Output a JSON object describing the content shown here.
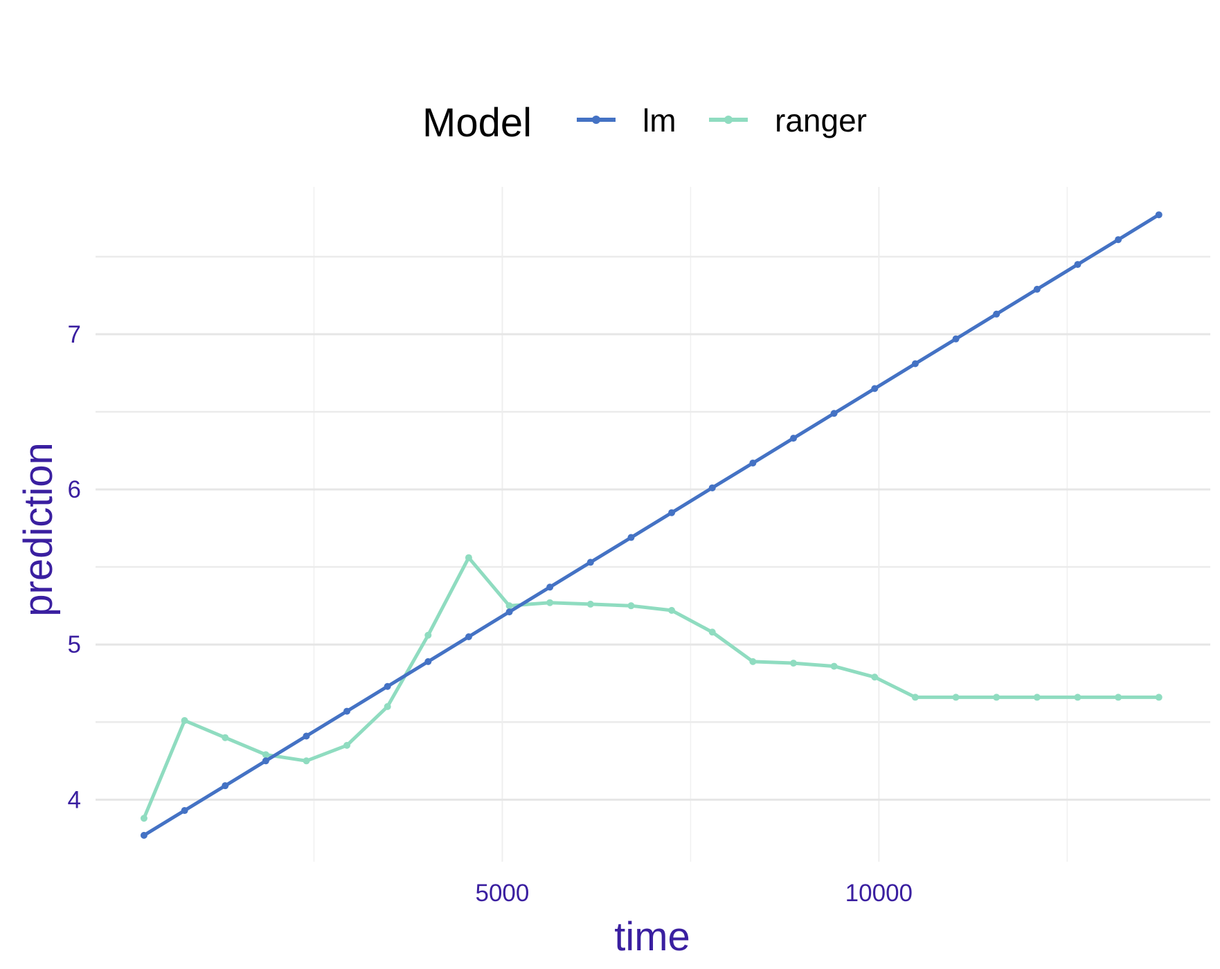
{
  "chart_data": {
    "type": "line",
    "xlabel": "time",
    "ylabel": "prediction",
    "xlim": [
      -400,
      14400
    ],
    "ylim": [
      3.6,
      7.95
    ],
    "x_ticks": [
      5000,
      10000
    ],
    "x_minor_ticks": [
      2500,
      7500,
      12500
    ],
    "y_ticks": [
      4,
      5,
      6,
      7
    ],
    "y_minor_ticks": [
      4.5,
      5.5,
      6.5,
      7.5
    ],
    "grid": true,
    "legend": {
      "title": "Model",
      "position": "top",
      "entries": [
        "lm",
        "ranger"
      ]
    },
    "series": [
      {
        "name": "lm",
        "color": "#4472c4",
        "points": [
          [
            243,
            3.77
          ],
          [
            782,
            3.93
          ],
          [
            1321,
            4.09
          ],
          [
            1860,
            4.25
          ],
          [
            2399,
            4.41
          ],
          [
            2937,
            4.57
          ],
          [
            3476,
            4.73
          ],
          [
            4015,
            4.89
          ],
          [
            4554,
            5.05
          ],
          [
            5093,
            5.21
          ],
          [
            5632,
            5.37
          ],
          [
            6171,
            5.53
          ],
          [
            6710,
            5.69
          ],
          [
            7249,
            5.85
          ],
          [
            7788,
            6.01
          ],
          [
            8327,
            6.17
          ],
          [
            8866,
            6.33
          ],
          [
            9405,
            6.49
          ],
          [
            9944,
            6.65
          ],
          [
            10483,
            6.81
          ],
          [
            11022,
            6.97
          ],
          [
            11561,
            7.13
          ],
          [
            12100,
            7.29
          ],
          [
            12639,
            7.45
          ],
          [
            13178,
            7.61
          ],
          [
            13717,
            7.77
          ]
        ]
      },
      {
        "name": "ranger",
        "color": "#8fdcc0",
        "points": [
          [
            243,
            3.88
          ],
          [
            782,
            4.51
          ],
          [
            1321,
            4.4
          ],
          [
            1860,
            4.29
          ],
          [
            2399,
            4.25
          ],
          [
            2937,
            4.35
          ],
          [
            3476,
            4.6
          ],
          [
            4015,
            5.06
          ],
          [
            4554,
            5.56
          ],
          [
            5093,
            5.25
          ],
          [
            5632,
            5.27
          ],
          [
            6171,
            5.26
          ],
          [
            6710,
            5.25
          ],
          [
            7249,
            5.22
          ],
          [
            7788,
            5.08
          ],
          [
            8327,
            4.89
          ],
          [
            8866,
            4.88
          ],
          [
            9405,
            4.86
          ],
          [
            9944,
            4.79
          ],
          [
            10483,
            4.66
          ],
          [
            11022,
            4.66
          ],
          [
            11561,
            4.66
          ],
          [
            12100,
            4.66
          ],
          [
            12639,
            4.66
          ],
          [
            13178,
            4.66
          ],
          [
            13717,
            4.66
          ]
        ]
      }
    ]
  }
}
